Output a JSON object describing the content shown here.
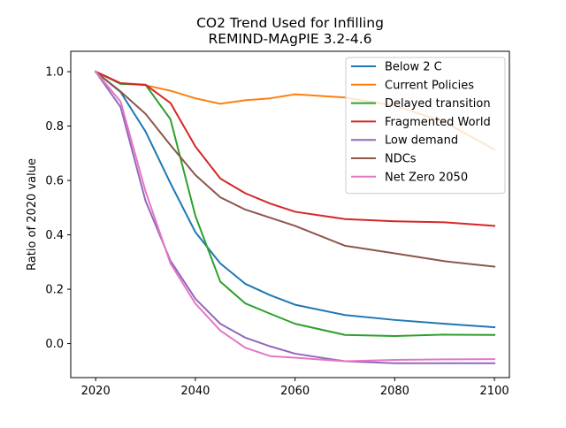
{
  "chart_data": {
    "type": "line",
    "title": "CO2 Trend Used for Infilling",
    "subtitle": "REMIND-MAgPIE 3.2-4.6",
    "xlabel": "",
    "ylabel": "Ratio of 2020 value",
    "xlim": [
      2015,
      2103
    ],
    "ylim": [
      -0.125,
      1.075
    ],
    "xticks": [
      2020,
      2040,
      2060,
      2080,
      2100
    ],
    "yticks": [
      0.0,
      0.2,
      0.4,
      0.6,
      0.8,
      1.0
    ],
    "ytick_labels": [
      "0.0",
      "0.2",
      "0.4",
      "0.6",
      "0.8",
      "1.0"
    ],
    "grid": false,
    "legend_position": "top-right",
    "x": [
      2020,
      2025,
      2030,
      2035,
      2040,
      2045,
      2050,
      2055,
      2060,
      2070,
      2080,
      2090,
      2100
    ],
    "series": [
      {
        "name": "Below 2 C",
        "color": "#1f77b4",
        "values": [
          1.0,
          0.925,
          0.78,
          0.59,
          0.41,
          0.295,
          0.22,
          0.178,
          0.143,
          0.105,
          0.087,
          0.073,
          0.06
        ]
      },
      {
        "name": "Current Policies",
        "color": "#ff7f0e",
        "values": [
          1.0,
          0.957,
          0.95,
          0.93,
          0.902,
          0.882,
          0.895,
          0.902,
          0.917,
          0.905,
          0.875,
          0.815,
          0.713
        ]
      },
      {
        "name": "Delayed transition",
        "color": "#2ca02c",
        "values": [
          1.0,
          0.955,
          0.952,
          0.825,
          0.47,
          0.228,
          0.148,
          0.11,
          0.073,
          0.032,
          0.028,
          0.033,
          0.032
        ]
      },
      {
        "name": "Fragmented World",
        "color": "#d62728",
        "values": [
          1.0,
          0.958,
          0.952,
          0.885,
          0.725,
          0.607,
          0.553,
          0.515,
          0.485,
          0.458,
          0.45,
          0.446,
          0.433
        ]
      },
      {
        "name": "Low demand",
        "color": "#9467bd",
        "values": [
          1.0,
          0.87,
          0.525,
          0.305,
          0.165,
          0.073,
          0.022,
          -0.01,
          -0.037,
          -0.065,
          -0.072,
          -0.072,
          -0.072
        ]
      },
      {
        "name": "NDCs",
        "color": "#8c564b",
        "values": [
          1.0,
          0.927,
          0.845,
          0.73,
          0.62,
          0.538,
          0.493,
          0.463,
          0.433,
          0.36,
          0.332,
          0.303,
          0.283
        ]
      },
      {
        "name": "Net Zero 2050",
        "color": "#e377c2",
        "values": [
          1.0,
          0.89,
          0.56,
          0.295,
          0.147,
          0.048,
          -0.015,
          -0.046,
          -0.052,
          -0.065,
          -0.06,
          -0.058,
          -0.057
        ]
      }
    ]
  }
}
